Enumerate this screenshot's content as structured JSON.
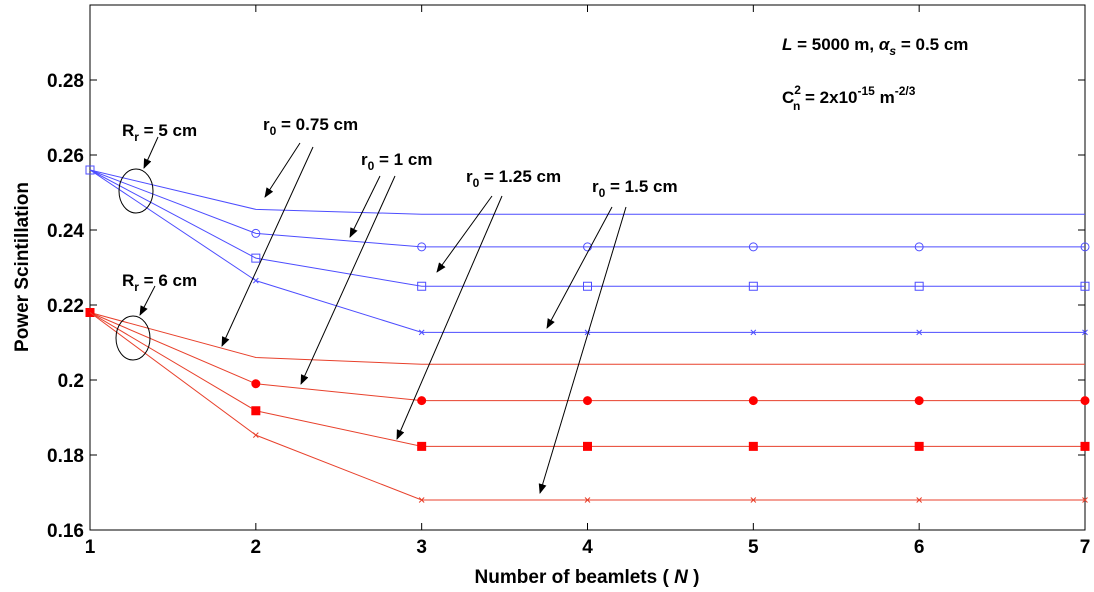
{
  "chart_data": {
    "type": "line",
    "title": "",
    "xlabel": "Number of beamlets ( N )",
    "xlabel_parts": {
      "pre": "Number of beamlets ( ",
      "var": "N",
      "post": " )"
    },
    "ylabel": "Power Scintillation",
    "xlim": [
      1,
      7
    ],
    "ylim": [
      0.16,
      0.3
    ],
    "xticks": [
      1,
      2,
      3,
      4,
      5,
      6,
      7
    ],
    "yticks": [
      0.16,
      0.18,
      0.2,
      0.22,
      0.24,
      0.26,
      0.28
    ],
    "xtick_labels": [
      "1",
      "2",
      "3",
      "4",
      "5",
      "6",
      "7"
    ],
    "ytick_labels": [
      "0.16",
      "0.18",
      "0.2",
      "0.22",
      "0.24",
      "0.26",
      "0.28"
    ],
    "grid": false,
    "x": [
      1,
      2,
      3,
      4,
      5,
      6,
      7
    ],
    "series": [
      {
        "group": "Rr5",
        "r0": 0.75,
        "color": "#4d4dff",
        "marker": "none",
        "values": [
          0.256,
          0.2455,
          0.2442,
          0.2442,
          0.2442,
          0.2442,
          0.2442
        ]
      },
      {
        "group": "Rr5",
        "r0": 1.0,
        "color": "#4d4dff",
        "marker": "circle",
        "values": [
          0.256,
          0.2391,
          0.2355,
          0.2355,
          0.2355,
          0.2355,
          0.2355
        ]
      },
      {
        "group": "Rr5",
        "r0": 1.25,
        "color": "#4d4dff",
        "marker": "square",
        "values": [
          0.256,
          0.2325,
          0.225,
          0.225,
          0.225,
          0.225,
          0.225
        ]
      },
      {
        "group": "Rr5",
        "r0": 1.5,
        "color": "#4d4dff",
        "marker": "x",
        "values": [
          0.256,
          0.2265,
          0.2127,
          0.2127,
          0.2127,
          0.2127,
          0.2127
        ]
      },
      {
        "group": "Rr6",
        "r0": 0.75,
        "color": "#e8412c",
        "marker": "none",
        "values": [
          0.218,
          0.206,
          0.2042,
          0.2042,
          0.2042,
          0.2042,
          0.2042
        ]
      },
      {
        "group": "Rr6",
        "r0": 1.0,
        "color": "#e8412c",
        "marker": "dot-filled",
        "values": [
          0.218,
          0.199,
          0.1945,
          0.1945,
          0.1945,
          0.1945,
          0.1945
        ]
      },
      {
        "group": "Rr6",
        "r0": 1.25,
        "color": "#e8412c",
        "marker": "square-filled",
        "values": [
          0.218,
          0.1918,
          0.1823,
          0.1823,
          0.1823,
          0.1823,
          0.1823
        ]
      },
      {
        "group": "Rr6",
        "r0": 1.5,
        "color": "#e8412c",
        "marker": "x",
        "values": [
          0.218,
          0.1853,
          0.168,
          0.168,
          0.168,
          0.168,
          0.168
        ]
      }
    ],
    "annotations": {
      "params_line1": {
        "L_sym": "L",
        "L_val": " = 5000 m, ",
        "alpha_sym": "α",
        "alpha_sub": "s",
        "alpha_val": " = 0.5 cm"
      },
      "params_line2": {
        "c": "C",
        "c_sup": "2",
        "c_sub": "n",
        "val": " = 2x10",
        "exp": "-15",
        "unit": " m",
        "unit_exp": "-2/3"
      },
      "rr5": {
        "main": "R",
        "sub": "r",
        "rest": " = 5 cm"
      },
      "rr6": {
        "main": "R",
        "sub": "r",
        "rest": " = 6 cm"
      },
      "r0_labels": [
        {
          "main": "r",
          "sub": "0",
          "rest": " = 0.75 cm"
        },
        {
          "main": "r",
          "sub": "0",
          "rest": " = 1 cm"
        },
        {
          "main": "r",
          "sub": "0",
          "rest": " = 1.25 cm"
        },
        {
          "main": "r",
          "sub": "0",
          "rest": " = 1.5 cm"
        }
      ]
    }
  }
}
